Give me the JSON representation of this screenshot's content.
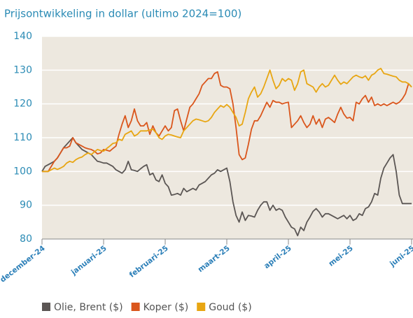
{
  "chart_data": {
    "type": "line",
    "title": "Prijsontwikkeling in dollar (ultimo 2024=100)",
    "categories": [
      "december-24",
      null,
      null,
      null,
      null,
      null,
      null,
      null,
      null,
      null,
      null,
      null,
      null,
      null,
      null,
      null,
      null,
      null,
      null,
      null,
      "januari-25",
      null,
      null,
      null,
      null,
      null,
      null,
      null,
      null,
      null,
      null,
      null,
      null,
      null,
      null,
      null,
      null,
      null,
      null,
      null,
      "februari-25",
      null,
      null,
      null,
      null,
      null,
      null,
      null,
      null,
      null,
      null,
      null,
      null,
      null,
      null,
      null,
      null,
      null,
      null,
      null,
      "maart-25",
      null,
      null,
      null,
      null,
      null,
      null,
      null,
      null,
      null,
      null,
      null,
      null,
      null,
      null,
      null,
      null,
      null,
      null,
      null,
      "april-25",
      null,
      null,
      null,
      null,
      null,
      null,
      null,
      null,
      null,
      null,
      null,
      null,
      null,
      null,
      null,
      null,
      null,
      null,
      null,
      "mei-25",
      null,
      null,
      null,
      null,
      null,
      null,
      null,
      null,
      null,
      null,
      null,
      null,
      null,
      null,
      null,
      null,
      null,
      null,
      null,
      "juni-25"
    ],
    "series": [
      {
        "name": "Olie, Brent ($)",
        "color": "#5b5654",
        "values": [
          100,
          101.5,
          102,
          102.5,
          103,
          104,
          105.5,
          107,
          108,
          109,
          110,
          108.5,
          107.5,
          106.5,
          106,
          105.5,
          105,
          104,
          103,
          102.8,
          102.5,
          102.5,
          102,
          101.5,
          100.5,
          100,
          99.5,
          100.5,
          103,
          100.5,
          100.3,
          100,
          100.8,
          101.5,
          102,
          99,
          99.5,
          97.5,
          97,
          99,
          96.5,
          95.5,
          93,
          93.2,
          93.5,
          93,
          95,
          94,
          94.5,
          95,
          94.5,
          96,
          96.5,
          97,
          98,
          99,
          99.5,
          100.5,
          100,
          100.5,
          101,
          97,
          91,
          87,
          85,
          88,
          85.5,
          87,
          86.8,
          86.5,
          88.5,
          90,
          91,
          91,
          88.5,
          90,
          88.5,
          89,
          88.5,
          86.5,
          85,
          83.5,
          83,
          81,
          83.5,
          82.5,
          85,
          86.5,
          88.2,
          89,
          88,
          86.5,
          87.5,
          87.5,
          87,
          86.5,
          86,
          86.5,
          87,
          86,
          87,
          85.5,
          86,
          87.5,
          87,
          89,
          89.5,
          91,
          93.5,
          93,
          98,
          101,
          102.5,
          104,
          105,
          100,
          93,
          90.5,
          90.5,
          90.5,
          90.5
        ]
      },
      {
        "name": "Koper ($)",
        "color": "#da561c",
        "values": [
          100,
          100,
          100,
          101.5,
          103,
          104,
          105.5,
          107,
          107,
          107.5,
          110,
          108.5,
          108,
          107.5,
          107,
          106.7,
          106.5,
          106,
          105.2,
          105.5,
          106.5,
          106.3,
          106,
          106.8,
          107.5,
          111,
          114,
          116.5,
          113,
          115,
          118.5,
          115,
          113.5,
          113.5,
          114.5,
          111,
          113.5,
          111.5,
          110.5,
          112,
          113.5,
          112,
          113,
          118,
          118.5,
          115,
          112,
          115.5,
          119,
          120,
          121.5,
          123,
          125.5,
          126.5,
          127.5,
          127.5,
          129,
          129.5,
          125.5,
          125,
          125,
          124.5,
          120,
          113,
          105,
          103.5,
          104,
          108,
          112.5,
          115,
          115,
          116.5,
          118.5,
          120.5,
          119,
          121,
          120.5,
          120.5,
          120,
          120.3,
          120.5,
          113,
          114,
          115,
          116.5,
          114.5,
          113,
          114,
          116.5,
          114,
          115.5,
          113,
          115.5,
          116,
          115.3,
          114.5,
          117,
          119,
          117,
          115.8,
          116,
          115,
          120.5,
          120,
          121.5,
          122.5,
          120.5,
          122,
          119.5,
          120,
          119.5,
          120,
          119.5,
          120,
          120.5,
          120,
          120.5,
          121.5,
          123,
          126,
          125
        ]
      },
      {
        "name": "Goud ($)",
        "color": "#e8a612",
        "values": [
          100,
          100,
          100,
          100.5,
          101,
          100.6,
          101,
          101.5,
          102.5,
          103,
          102.7,
          103.5,
          104,
          104.3,
          105,
          105.5,
          105,
          105.8,
          106.5,
          106.2,
          106,
          106.8,
          107.5,
          108.3,
          108.5,
          109.5,
          109.2,
          111,
          111.5,
          112,
          110.5,
          111,
          112,
          112,
          112,
          112.3,
          112.5,
          111.5,
          110,
          109.5,
          110.5,
          111,
          110.8,
          110.5,
          110.2,
          110,
          112,
          113,
          114,
          115,
          115.5,
          115.3,
          115,
          114.7,
          115,
          116,
          117.5,
          118.5,
          119.5,
          119,
          119.8,
          119,
          117.5,
          116,
          113.5,
          114,
          117.5,
          121.5,
          123.5,
          125,
          122,
          123,
          125,
          127.5,
          130,
          127,
          124.5,
          125.5,
          127.5,
          126.7,
          127.5,
          127,
          124,
          126,
          129.5,
          130,
          126,
          125.5,
          125,
          123.5,
          125,
          126,
          125,
          125.5,
          127,
          128.5,
          127,
          125.8,
          126.5,
          126,
          127,
          128,
          128.5,
          128,
          127.7,
          128.3,
          127,
          128.5,
          129,
          130,
          130.5,
          129,
          128.8,
          128.5,
          128.2,
          128,
          127,
          126.5,
          126.5,
          126,
          125
        ]
      }
    ],
    "ylim": [
      80,
      140
    ],
    "yticks": [
      80,
      90,
      100,
      110,
      120,
      130,
      140
    ],
    "grid": true
  }
}
